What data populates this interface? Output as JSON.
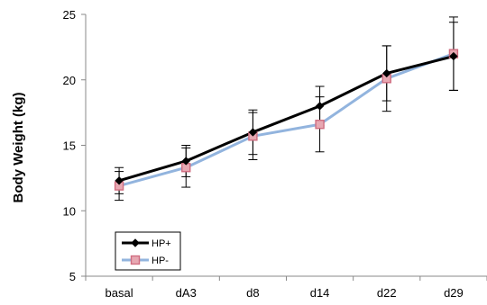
{
  "chart_data": {
    "type": "line",
    "categories": [
      "basal",
      "dA3",
      "d8",
      "d14",
      "d22",
      "d29"
    ],
    "ylabel": "Body Weight (kg)",
    "xlabel": "",
    "ylim": [
      5,
      25
    ],
    "yticks": [
      5,
      10,
      15,
      20,
      25
    ],
    "grid": false,
    "legend": "bottom-left",
    "series": [
      {
        "name": "HP+",
        "color": "#000000",
        "marker": "diamond",
        "values": [
          12.3,
          13.8,
          16.0,
          18.0,
          20.5,
          21.8
        ],
        "error": [
          1.0,
          1.2,
          1.7,
          1.5,
          2.1,
          2.6
        ]
      },
      {
        "name": "HP-",
        "color": "#92b4de",
        "marker": "square",
        "values": [
          11.9,
          13.3,
          15.7,
          16.6,
          20.1,
          22.0
        ],
        "error": [
          1.1,
          1.5,
          1.8,
          2.1,
          2.5,
          2.8
        ]
      }
    ]
  }
}
